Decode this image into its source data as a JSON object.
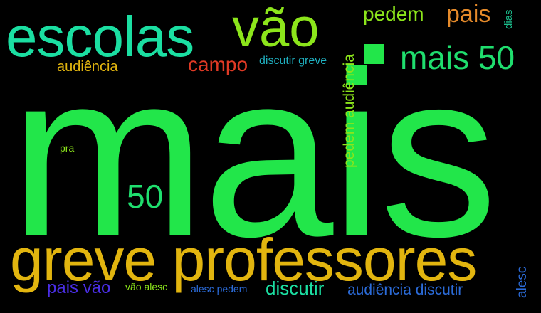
{
  "wordcloud": {
    "words": [
      {
        "id": "mais",
        "text": "mais",
        "color": "#22e64a"
      },
      {
        "id": "greve_professores",
        "text": "greve professores",
        "color": "#e2b50f"
      },
      {
        "id": "escolas",
        "text": "escolas",
        "color": "#1bdfa2"
      },
      {
        "id": "vao",
        "text": "vão",
        "color": "#8ce51b"
      },
      {
        "id": "mais50",
        "text": "mais 50",
        "color": "#1fde6e"
      },
      {
        "id": "pedem",
        "text": "pedem",
        "color": "#8ce51b"
      },
      {
        "id": "pais",
        "text": "pais",
        "color": "#e58a2a"
      },
      {
        "id": "dias",
        "text": "dias",
        "color": "#1bbd8c"
      },
      {
        "id": "audiencia",
        "text": "audiência",
        "color": "#e2b50f"
      },
      {
        "id": "campo",
        "text": "campo",
        "color": "#e03a25"
      },
      {
        "id": "discutir_greve",
        "text": "discutir greve",
        "color": "#1fb0c0"
      },
      {
        "id": "pedem_audiencia",
        "text": "pedem audiência",
        "color": "#8ce51b"
      },
      {
        "id": "pra",
        "text": "pra",
        "color": "#8ce51b"
      },
      {
        "id": "fifty",
        "text": "50",
        "color": "#1fde6e"
      },
      {
        "id": "pais_vao",
        "text": "pais vão",
        "color": "#4a2ee6"
      },
      {
        "id": "vao_alesc",
        "text": "vão alesc",
        "color": "#8ce51b"
      },
      {
        "id": "alesc_pedem",
        "text": "alesc pedem",
        "color": "#2b6bd8"
      },
      {
        "id": "discutir",
        "text": "discutir",
        "color": "#1bdfa2"
      },
      {
        "id": "audiencia_discutir",
        "text": "audiência discutir",
        "color": "#2b6bd8"
      },
      {
        "id": "alesc",
        "text": "alesc",
        "color": "#2b6bd8"
      }
    ],
    "marks": {
      "square_color": "#22e64a"
    },
    "background_color": "#000000"
  }
}
